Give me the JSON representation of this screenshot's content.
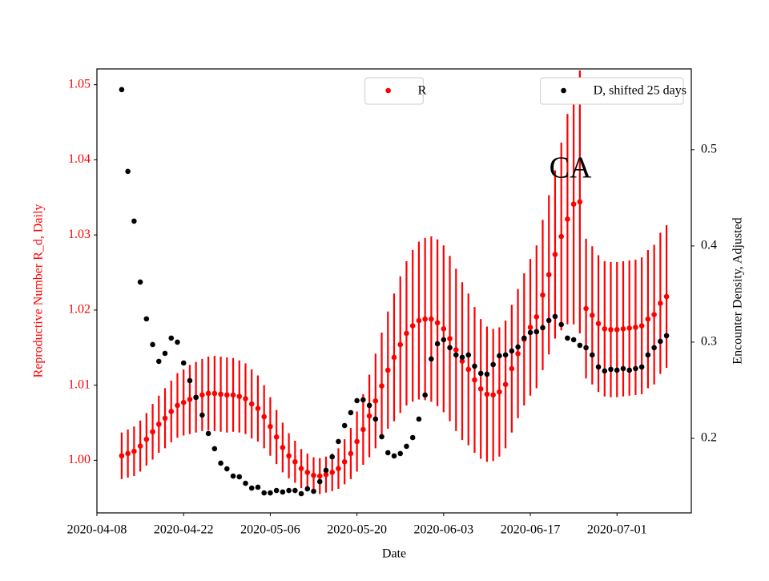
{
  "chart_data": {
    "type": "errorbar_dual",
    "xlabel": "Date",
    "ylabel": "Reproductive Number R_d, Daily",
    "y2label": "Encounter Density, Adjusted",
    "annotation": "CA",
    "xlim": [
      "2020-04-08",
      "2020-07-13"
    ],
    "xticks": [
      "2020-04-08",
      "2020-04-22",
      "2020-05-06",
      "2020-05-20",
      "2020-06-03",
      "2020-06-17",
      "2020-07-01"
    ],
    "ylim": [
      0.993,
      1.0521
    ],
    "yticks": [
      {
        "value": 1,
        "label": "1.00"
      },
      1.01,
      1.02,
      1.03,
      1.04,
      1.05
    ],
    "y2lim": [
      0.1225,
      0.584
    ],
    "y2ticks": [
      0.2,
      0.3,
      0.4,
      0.5
    ],
    "x": [
      "2020-04-12",
      "2020-04-13",
      "2020-04-14",
      "2020-04-15",
      "2020-04-16",
      "2020-04-17",
      "2020-04-18",
      "2020-04-19",
      "2020-04-20",
      "2020-04-21",
      "2020-04-22",
      "2020-04-23",
      "2020-04-24",
      "2020-04-25",
      "2020-04-26",
      "2020-04-27",
      "2020-04-28",
      "2020-04-29",
      "2020-04-30",
      "2020-05-01",
      "2020-05-02",
      "2020-05-03",
      "2020-05-04",
      "2020-05-05",
      "2020-05-06",
      "2020-05-07",
      "2020-05-08",
      "2020-05-09",
      "2020-05-10",
      "2020-05-11",
      "2020-05-12",
      "2020-05-13",
      "2020-05-14",
      "2020-05-15",
      "2020-05-16",
      "2020-05-17",
      "2020-05-18",
      "2020-05-19",
      "2020-05-20",
      "2020-05-21",
      "2020-05-22",
      "2020-05-23",
      "2020-05-24",
      "2020-05-25",
      "2020-05-26",
      "2020-05-27",
      "2020-05-28",
      "2020-05-29",
      "2020-05-30",
      "2020-05-31",
      "2020-06-01",
      "2020-06-02",
      "2020-06-03",
      "2020-06-04",
      "2020-06-05",
      "2020-06-06",
      "2020-06-07",
      "2020-06-08",
      "2020-06-09",
      "2020-06-10",
      "2020-06-11",
      "2020-06-12",
      "2020-06-13",
      "2020-06-14",
      "2020-06-15",
      "2020-06-16",
      "2020-06-17",
      "2020-06-18",
      "2020-06-19",
      "2020-06-20",
      "2020-06-21",
      "2020-06-22",
      "2020-06-23",
      "2020-06-24",
      "2020-06-25",
      "2020-06-26",
      "2020-06-27",
      "2020-06-28",
      "2020-06-29",
      "2020-06-30",
      "2020-07-01",
      "2020-07-02",
      "2020-07-03",
      "2020-07-04",
      "2020-07-05",
      "2020-07-06",
      "2020-07-07",
      "2020-07-08",
      "2020-07-09"
    ],
    "series": [
      {
        "name": "R",
        "color": "#ff0000",
        "legend": "upper center",
        "values": [
          1.0006,
          1.0009,
          1.0012,
          1.0019,
          1.0028,
          1.0038,
          1.0048,
          1.0056,
          1.0065,
          1.0073,
          1.0077,
          1.0081,
          1.0084,
          1.0087,
          1.0089,
          1.0089,
          1.0088,
          1.0087,
          1.0087,
          1.0085,
          1.0082,
          1.0075,
          1.0069,
          1.0058,
          1.0045,
          1.0031,
          1.0017,
          1.0006,
          0.9998,
          0.9989,
          0.9984,
          0.998,
          0.9979,
          0.9981,
          0.9984,
          0.9989,
          0.9998,
          1.0009,
          1.0025,
          1.0041,
          1.0059,
          1.0079,
          1.0099,
          1.012,
          1.0137,
          1.0154,
          1.0169,
          1.0179,
          1.0186,
          1.0188,
          1.0188,
          1.0183,
          1.0175,
          1.0162,
          1.0147,
          1.0132,
          1.0121,
          1.0107,
          1.0095,
          1.0088,
          1.0087,
          1.0091,
          1.0101,
          1.0122,
          1.0142,
          1.0161,
          1.0177,
          1.0191,
          1.022,
          1.0247,
          1.0274,
          1.0298,
          1.0321,
          1.0341,
          1.0344,
          1.0202,
          1.0193,
          1.0182,
          1.0175,
          1.0174,
          1.0174,
          1.0175,
          1.0176,
          1.0177,
          1.0179,
          1.0188,
          1.0194,
          1.0209,
          1.0218
        ],
        "errors": [
          0.0031,
          0.0032,
          0.0033,
          0.0034,
          0.0035,
          0.0037,
          0.0038,
          0.004,
          0.0041,
          0.0043,
          0.0044,
          0.0046,
          0.0047,
          0.0048,
          0.0049,
          0.005,
          0.005,
          0.005,
          0.0049,
          0.0048,
          0.0047,
          0.0046,
          0.0044,
          0.0042,
          0.0039,
          0.0036,
          0.0033,
          0.003,
          0.0028,
          0.0026,
          0.0025,
          0.0024,
          0.0024,
          0.0024,
          0.0025,
          0.0027,
          0.003,
          0.0034,
          0.004,
          0.0047,
          0.0055,
          0.0063,
          0.0071,
          0.0078,
          0.0085,
          0.0091,
          0.0096,
          0.0101,
          0.0105,
          0.0108,
          0.011,
          0.0111,
          0.0111,
          0.011,
          0.0108,
          0.0105,
          0.0101,
          0.0097,
          0.0093,
          0.009,
          0.0088,
          0.0086,
          0.0085,
          0.0085,
          0.0086,
          0.0088,
          0.0091,
          0.0095,
          0.01,
          0.0106,
          0.0112,
          0.0125,
          0.014,
          0.016,
          0.0175,
          0.0093,
          0.0092,
          0.0091,
          0.009,
          0.009,
          0.009,
          0.009,
          0.009,
          0.009,
          0.0091,
          0.0092,
          0.0093,
          0.0094,
          0.0095
        ]
      },
      {
        "name": "D, shifted 25 days",
        "color": "#000000",
        "axis": "y2",
        "legend": "upper right",
        "values": [
          0.5625,
          0.4775,
          0.4258,
          0.3625,
          0.3242,
          0.2975,
          0.28,
          0.2883,
          0.3042,
          0.3,
          0.2783,
          0.26,
          0.2425,
          0.2242,
          0.205,
          0.1892,
          0.1742,
          0.1683,
          0.1608,
          0.16,
          0.1533,
          0.1483,
          0.1492,
          0.1433,
          0.1433,
          0.1458,
          0.1442,
          0.1458,
          0.1458,
          0.1425,
          0.1475,
          0.145,
          0.155,
          0.1667,
          0.1808,
          0.1967,
          0.2133,
          0.2267,
          0.2392,
          0.24,
          0.2342,
          0.22,
          0.2017,
          0.185,
          0.1817,
          0.1842,
          0.1917,
          0.2008,
          0.22,
          0.245,
          0.2825,
          0.2983,
          0.3025,
          0.2942,
          0.2867,
          0.2842,
          0.2867,
          0.275,
          0.2675,
          0.2667,
          0.2767,
          0.2858,
          0.2867,
          0.2908,
          0.295,
          0.3042,
          0.31,
          0.3108,
          0.315,
          0.3225,
          0.3267,
          0.3183,
          0.3042,
          0.3025,
          0.2967,
          0.2942,
          0.2867,
          0.2742,
          0.27,
          0.2717,
          0.2708,
          0.2725,
          0.2708,
          0.2725,
          0.2742,
          0.2867,
          0.2942,
          0.3008,
          0.3067
        ]
      }
    ]
  }
}
